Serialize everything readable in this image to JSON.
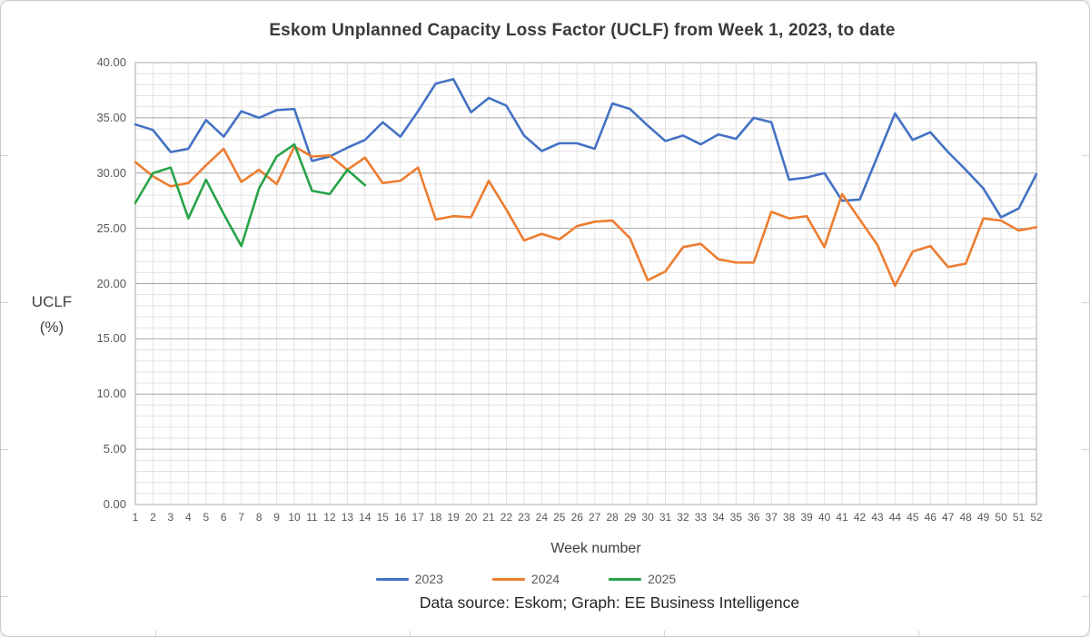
{
  "chart_data": {
    "type": "line",
    "title": "Eskom Unplanned Capacity Loss Factor (UCLF) from Week 1, 2023, to date",
    "xlabel": "Week number",
    "ylabel_line1": "UCLF",
    "ylabel_line2": "(%)",
    "footer": "Data source: Eskom; Graph: EE Business Intelligence",
    "ylim": [
      0,
      40
    ],
    "ytick_step": 5,
    "ytick_labels": [
      "0.00",
      "5.00",
      "10.00",
      "15.00",
      "20.00",
      "25.00",
      "30.00",
      "35.00",
      "40.00"
    ],
    "x": [
      1,
      2,
      3,
      4,
      5,
      6,
      7,
      8,
      9,
      10,
      11,
      12,
      13,
      14,
      15,
      16,
      17,
      18,
      19,
      20,
      21,
      22,
      23,
      24,
      25,
      26,
      27,
      28,
      29,
      30,
      31,
      32,
      33,
      34,
      35,
      36,
      37,
      38,
      39,
      40,
      41,
      42,
      43,
      44,
      45,
      46,
      47,
      48,
      49,
      50,
      51,
      52
    ],
    "grid": {
      "vertical_every_week": true,
      "horizontal_minor_step": 1,
      "horizontal_major_step": 5
    },
    "legend_position": "bottom",
    "series": [
      {
        "name": "2023",
        "color": "#4472C4",
        "values": [
          34.4,
          33.9,
          31.9,
          32.2,
          34.8,
          33.3,
          35.6,
          35.0,
          35.7,
          35.8,
          31.1,
          31.5,
          32.3,
          33.0,
          34.6,
          33.3,
          35.6,
          38.1,
          38.5,
          35.5,
          36.8,
          36.1,
          33.4,
          32.0,
          32.7,
          32.7,
          32.2,
          36.3,
          35.8,
          34.3,
          32.9,
          33.4,
          32.6,
          33.5,
          33.1,
          35.0,
          34.6,
          29.4,
          29.6,
          30.0,
          27.5,
          27.6,
          31.5,
          35.4,
          33.0,
          33.7,
          31.9,
          30.3,
          28.6,
          26.0,
          26.8,
          29.9
        ]
      },
      {
        "name": "2024",
        "color": "#ED7D31",
        "values": [
          31.0,
          29.7,
          28.8,
          29.1,
          30.7,
          32.2,
          29.2,
          30.3,
          29.0,
          32.4,
          31.5,
          31.6,
          30.3,
          31.4,
          29.1,
          29.3,
          30.5,
          25.8,
          26.1,
          26.0,
          29.3,
          26.7,
          23.9,
          24.5,
          24.0,
          25.2,
          25.6,
          25.7,
          24.1,
          20.3,
          21.1,
          23.3,
          23.6,
          22.2,
          21.9,
          21.9,
          26.5,
          25.9,
          26.1,
          23.3,
          28.1,
          25.8,
          23.5,
          19.8,
          22.9,
          23.4,
          21.5,
          21.8,
          25.9,
          25.7,
          24.8,
          25.1
        ]
      },
      {
        "name": "2025",
        "color": "#27A347",
        "values": [
          27.3,
          30.0,
          30.5,
          25.9,
          29.4,
          26.3,
          23.4,
          28.6,
          31.5,
          32.6,
          28.4,
          28.1,
          30.3,
          28.9
        ]
      }
    ]
  },
  "style_colors": {
    "grid_minor": "#e3e3e3",
    "grid_major": "#a6a6a6",
    "plot_border": "#ababab"
  }
}
